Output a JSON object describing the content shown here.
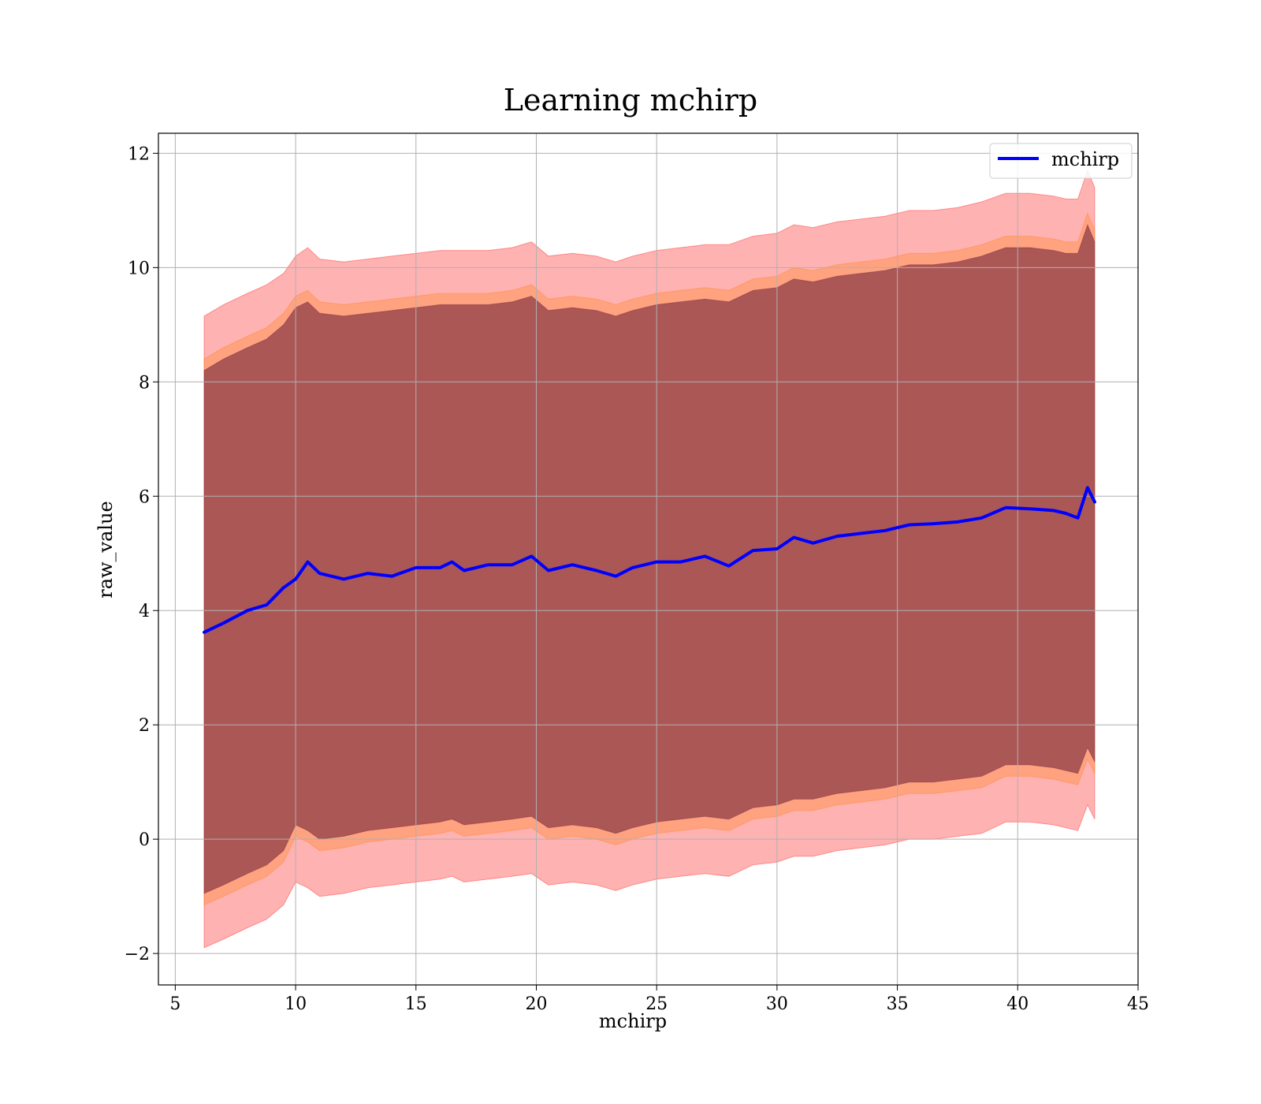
{
  "chart_data": {
    "type": "area",
    "title": "Learning mchirp",
    "xlabel": "mchirp",
    "ylabel": "raw_value",
    "xlim": [
      4.3,
      45
    ],
    "ylim": [
      -2.55,
      12.35
    ],
    "xticks": [
      5,
      10,
      15,
      20,
      25,
      30,
      35,
      40,
      45
    ],
    "yticks": [
      -2,
      0,
      2,
      4,
      6,
      8,
      10,
      12
    ],
    "xtick_labels": [
      "5",
      "10",
      "15",
      "20",
      "25",
      "30",
      "35",
      "40",
      "45"
    ],
    "ytick_labels": [
      "−2",
      "0",
      "2",
      "4",
      "6",
      "8",
      "10",
      "12"
    ],
    "grid": true,
    "legend": {
      "position": "top-right",
      "entries": [
        "mchirp"
      ]
    },
    "x": [
      6.2,
      7.0,
      8.0,
      8.8,
      9.5,
      10.0,
      10.5,
      11.0,
      12.0,
      13.0,
      14.0,
      15.0,
      16.0,
      16.5,
      17.0,
      18.0,
      19.0,
      19.8,
      20.5,
      21.5,
      22.5,
      23.3,
      24.0,
      25.0,
      26.0,
      27.0,
      28.0,
      29.0,
      30.0,
      30.7,
      31.5,
      32.5,
      33.5,
      34.5,
      35.5,
      36.5,
      37.5,
      38.5,
      39.5,
      40.5,
      41.5,
      42.0,
      42.5,
      42.9,
      43.2
    ],
    "series": [
      {
        "name": "mchirp",
        "color": "#0000ff",
        "values": [
          3.62,
          3.78,
          4.0,
          4.1,
          4.4,
          4.55,
          4.85,
          4.65,
          4.55,
          4.65,
          4.6,
          4.75,
          4.75,
          4.85,
          4.7,
          4.8,
          4.8,
          4.95,
          4.7,
          4.8,
          4.7,
          4.6,
          4.75,
          4.85,
          4.85,
          4.95,
          4.78,
          5.05,
          5.08,
          5.28,
          5.18,
          5.3,
          5.35,
          5.4,
          5.5,
          5.52,
          5.55,
          5.62,
          5.8,
          5.78,
          5.75,
          5.7,
          5.62,
          6.15,
          5.9
        ]
      }
    ],
    "bands": [
      {
        "color": "#ff0000",
        "opacity": 0.3,
        "upper": [
          9.15,
          9.35,
          9.55,
          9.7,
          9.9,
          10.2,
          10.35,
          10.15,
          10.1,
          10.15,
          10.2,
          10.25,
          10.3,
          10.3,
          10.3,
          10.3,
          10.35,
          10.45,
          10.2,
          10.25,
          10.2,
          10.1,
          10.2,
          10.3,
          10.35,
          10.4,
          10.4,
          10.55,
          10.6,
          10.75,
          10.7,
          10.8,
          10.85,
          10.9,
          11.0,
          11.0,
          11.05,
          11.15,
          11.3,
          11.3,
          11.25,
          11.2,
          11.2,
          11.7,
          11.4
        ],
        "lower": [
          -1.9,
          -1.75,
          -1.55,
          -1.4,
          -1.15,
          -0.75,
          -0.85,
          -1.0,
          -0.95,
          -0.85,
          -0.8,
          -0.75,
          -0.7,
          -0.65,
          -0.75,
          -0.7,
          -0.65,
          -0.6,
          -0.8,
          -0.75,
          -0.8,
          -0.9,
          -0.8,
          -0.7,
          -0.65,
          -0.6,
          -0.65,
          -0.45,
          -0.4,
          -0.3,
          -0.3,
          -0.2,
          -0.15,
          -0.1,
          0.0,
          0.0,
          0.05,
          0.1,
          0.3,
          0.3,
          0.25,
          0.2,
          0.15,
          0.6,
          0.35
        ]
      },
      {
        "color": "#ff7f0e",
        "opacity": 0.3,
        "upper": [
          8.4,
          8.6,
          8.8,
          8.95,
          9.2,
          9.5,
          9.6,
          9.4,
          9.35,
          9.4,
          9.45,
          9.5,
          9.55,
          9.55,
          9.55,
          9.55,
          9.6,
          9.7,
          9.45,
          9.5,
          9.45,
          9.35,
          9.45,
          9.55,
          9.6,
          9.65,
          9.6,
          9.8,
          9.85,
          10.0,
          9.95,
          10.05,
          10.1,
          10.15,
          10.25,
          10.25,
          10.3,
          10.4,
          10.55,
          10.55,
          10.5,
          10.45,
          10.45,
          10.95,
          10.65
        ],
        "lower": [
          -1.15,
          -1.0,
          -0.8,
          -0.65,
          -0.4,
          0.05,
          -0.05,
          -0.2,
          -0.15,
          -0.05,
          0.0,
          0.05,
          0.1,
          0.15,
          0.05,
          0.1,
          0.15,
          0.2,
          0.0,
          0.05,
          0.0,
          -0.1,
          0.0,
          0.1,
          0.15,
          0.2,
          0.15,
          0.35,
          0.4,
          0.5,
          0.5,
          0.6,
          0.65,
          0.7,
          0.8,
          0.8,
          0.85,
          0.9,
          1.1,
          1.1,
          1.05,
          1.0,
          0.95,
          1.4,
          1.15
        ]
      },
      {
        "color": "#661a33",
        "opacity": 0.55,
        "upper": [
          8.2,
          8.4,
          8.6,
          8.75,
          9.0,
          9.3,
          9.4,
          9.2,
          9.15,
          9.2,
          9.25,
          9.3,
          9.35,
          9.35,
          9.35,
          9.35,
          9.4,
          9.5,
          9.25,
          9.3,
          9.25,
          9.15,
          9.25,
          9.35,
          9.4,
          9.45,
          9.4,
          9.6,
          9.65,
          9.8,
          9.75,
          9.85,
          9.9,
          9.95,
          10.05,
          10.05,
          10.1,
          10.2,
          10.35,
          10.35,
          10.3,
          10.25,
          10.25,
          10.75,
          10.45
        ],
        "lower": [
          -0.95,
          -0.8,
          -0.6,
          -0.45,
          -0.2,
          0.25,
          0.15,
          0.0,
          0.05,
          0.15,
          0.2,
          0.25,
          0.3,
          0.35,
          0.25,
          0.3,
          0.35,
          0.4,
          0.2,
          0.25,
          0.2,
          0.1,
          0.2,
          0.3,
          0.35,
          0.4,
          0.35,
          0.55,
          0.6,
          0.7,
          0.7,
          0.8,
          0.85,
          0.9,
          1.0,
          1.0,
          1.05,
          1.1,
          1.3,
          1.3,
          1.25,
          1.2,
          1.15,
          1.6,
          1.35
        ]
      }
    ]
  }
}
